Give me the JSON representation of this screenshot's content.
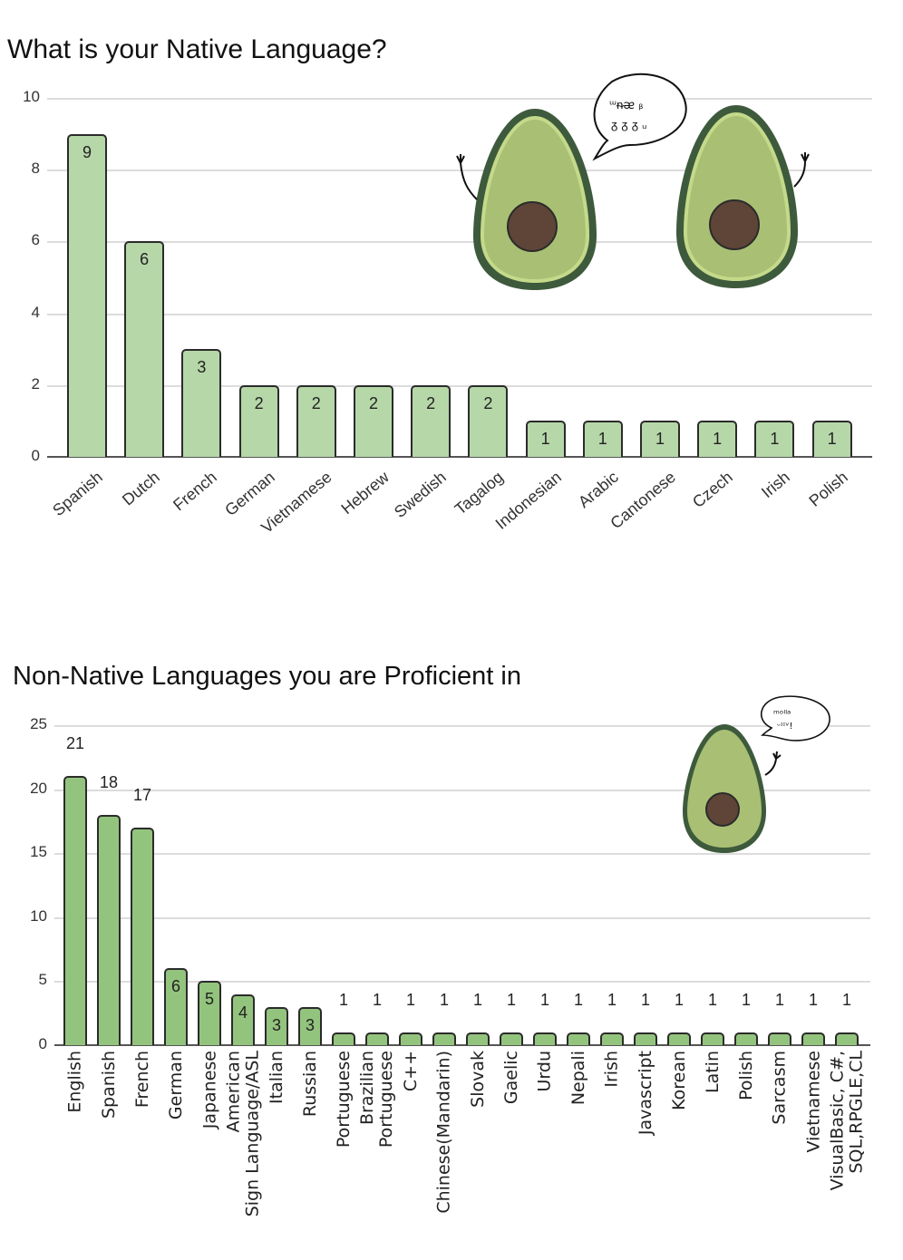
{
  "colors": {
    "chart1_bar": "#b6d7a8",
    "chart2_bar": "#93c47d",
    "bar_border": "#2b2b2b",
    "grid": "#dcdcdc",
    "avocado_skin": "#3e5a3c",
    "avocado_flesh": "#a9c074",
    "avocado_rim": "#c4da8a",
    "avocado_pit": "#5e4537"
  },
  "chart_data": [
    {
      "type": "bar",
      "title": "What is your Native Language?",
      "xlabel": "",
      "ylabel": "",
      "ylim": [
        0,
        10
      ],
      "yticks": [
        0,
        2,
        4,
        6,
        8,
        10
      ],
      "grid": true,
      "legend": "none",
      "categories": [
        "Spanish",
        "Dutch",
        "French",
        "German",
        "Vietnamese",
        "Hebrew",
        "Swedish",
        "Tagalog",
        "Indonesian",
        "Arabic",
        "Cantonese",
        "Czech",
        "Irish",
        "Polish"
      ],
      "values": [
        9,
        6,
        3,
        2,
        2,
        2,
        2,
        2,
        1,
        1,
        1,
        1,
        1,
        1
      ],
      "data_labels": [
        "9",
        "6",
        "3",
        "2",
        "2",
        "2",
        "2",
        "2",
        "1",
        "1",
        "1",
        "1",
        "1",
        "1"
      ]
    },
    {
      "type": "bar",
      "title": "Non-Native Languages you are Proficient in",
      "xlabel": "",
      "ylabel": "",
      "ylim": [
        0,
        25
      ],
      "yticks": [
        0,
        5,
        10,
        15,
        20,
        25
      ],
      "grid": true,
      "legend": "none",
      "categories": [
        "English",
        "Spanish",
        "French",
        "German",
        "Japanese",
        "American\nSign Language/ASL",
        "Italian",
        "Russian",
        "Portuguese",
        "Brazilian\nPortuguese",
        "C++",
        "Chinese(Mandarin)",
        "Slovak",
        "Gaelic",
        "Urdu",
        "Nepali",
        "Irish",
        "Javascript",
        "Korean",
        "Latin",
        "Polish",
        "Sarcasm",
        "Vietnamese",
        "VisualBasic, C#,\nSQL,RPGLE,CL"
      ],
      "values": [
        21,
        18,
        17,
        6,
        5,
        4,
        3,
        3,
        1,
        1,
        1,
        1,
        1,
        1,
        1,
        1,
        1,
        1,
        1,
        1,
        1,
        1,
        1,
        1
      ],
      "data_labels": [
        "21",
        "18",
        "17",
        "6",
        "5",
        "4",
        "3",
        "3",
        "1",
        "1",
        "1",
        "1",
        "1",
        "1",
        "1",
        "1",
        "1",
        "1",
        "1",
        "1",
        "1",
        "1",
        "1",
        "1"
      ]
    }
  ],
  "decorations": {
    "chart1_avocados": [
      "avocado-waving-left",
      "avocado-waving-right"
    ],
    "chart1_speech_bubble": "scribbled speech bubble",
    "chart2_avocado": "avocado-waving",
    "chart2_speech_bubble": "scribbled speech bubble"
  }
}
